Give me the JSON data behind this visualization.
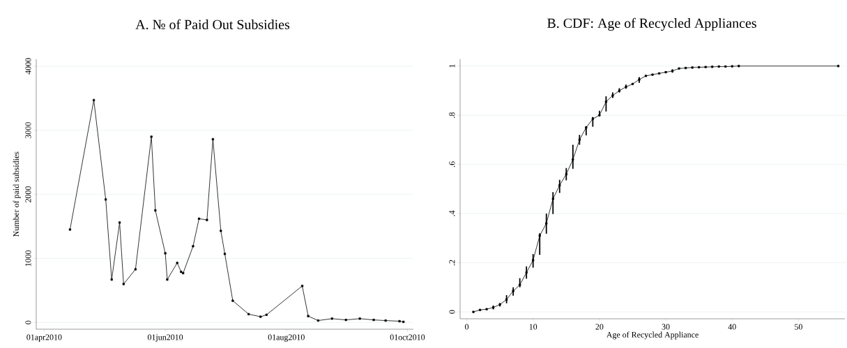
{
  "chart_data": [
    {
      "type": "line",
      "title": "A. № of Paid Out Subsidies",
      "ylabel": "Number of paid subsidies",
      "x": [
        "2010-04-14",
        "2010-04-26",
        "2010-05-02",
        "2010-05-05",
        "2010-05-09",
        "2010-05-11",
        "2010-05-17",
        "2010-05-25",
        "2010-05-27",
        "2010-06-01",
        "2010-06-02",
        "2010-06-07",
        "2010-06-09",
        "2010-06-10",
        "2010-06-15",
        "2010-06-18",
        "2010-06-22",
        "2010-06-25",
        "2010-06-29",
        "2010-07-01",
        "2010-07-05",
        "2010-07-13",
        "2010-07-19",
        "2010-07-22",
        "2010-08-09",
        "2010-08-12",
        "2010-08-17",
        "2010-08-24",
        "2010-08-31",
        "2010-09-07",
        "2010-09-14",
        "2010-09-20",
        "2010-09-27",
        "2010-09-29"
      ],
      "values": [
        1450,
        3470,
        1920,
        670,
        1560,
        600,
        830,
        2900,
        1750,
        1080,
        670,
        930,
        790,
        770,
        1190,
        1620,
        1600,
        2860,
        1430,
        1070,
        340,
        130,
        90,
        120,
        570,
        100,
        30,
        60,
        40,
        60,
        40,
        30,
        20,
        10
      ],
      "color": "#000000",
      "marker": "square",
      "line_style": "solid",
      "grid": "y",
      "xlim": [
        "2010-03-28",
        "2010-10-04"
      ],
      "xticks": [
        {
          "value": "2010-04-01",
          "label": "01apr2010"
        },
        {
          "value": "2010-06-01",
          "label": "01jun2010"
        },
        {
          "value": "2010-08-01",
          "label": "01aug2010"
        },
        {
          "value": "2010-10-01",
          "label": "01oct2010"
        }
      ],
      "ylim": [
        -105,
        4110
      ],
      "yticks": [
        0,
        1000,
        2000,
        3000,
        4000
      ]
    },
    {
      "type": "line",
      "title": "B. CDF: Age of Recycled Appliances",
      "xlabel": "Age of Recycled Appliance",
      "x": [
        1,
        2,
        3,
        4,
        5,
        6,
        7,
        8,
        9,
        10,
        11,
        12,
        13,
        14,
        15,
        16,
        17,
        18,
        19,
        20,
        21,
        22,
        23,
        24,
        25,
        26,
        27,
        28,
        29,
        30,
        31,
        32,
        33,
        34,
        35,
        36,
        37,
        38,
        39,
        40,
        41,
        56
      ],
      "values": [
        0.0,
        0.008,
        0.011,
        0.018,
        0.03,
        0.05,
        0.085,
        0.11,
        0.16,
        0.21,
        0.31,
        0.36,
        0.46,
        0.515,
        0.56,
        0.62,
        0.7,
        0.75,
        0.785,
        0.8,
        0.855,
        0.88,
        0.9,
        0.915,
        0.927,
        0.945,
        0.96,
        0.965,
        0.97,
        0.975,
        0.98,
        0.99,
        0.992,
        0.994,
        0.995,
        0.996,
        0.997,
        0.998,
        0.998,
        0.999,
        1.0,
        1.0
      ],
      "errors": [
        null,
        null,
        null,
        [
          0.01,
          0.026
        ],
        [
          0.022,
          0.036
        ],
        [
          0.035,
          0.068
        ],
        [
          0.066,
          0.1
        ],
        [
          0.1,
          0.137
        ],
        [
          0.135,
          0.185
        ],
        [
          0.18,
          0.235
        ],
        [
          0.232,
          0.32
        ],
        [
          0.318,
          0.4
        ],
        [
          0.398,
          0.487
        ],
        [
          0.484,
          0.537
        ],
        [
          0.535,
          0.585
        ],
        [
          0.582,
          0.68
        ],
        [
          0.68,
          0.72
        ],
        [
          0.718,
          0.755
        ],
        [
          0.753,
          0.793
        ],
        [
          0.795,
          0.818
        ],
        [
          0.815,
          0.877
        ],
        [
          0.87,
          0.893
        ],
        [
          0.892,
          0.91
        ],
        [
          0.908,
          0.925
        ],
        null,
        [
          0.932,
          0.955
        ],
        null,
        null,
        null,
        null,
        [
          0.973,
          0.987
        ],
        null,
        null,
        null,
        null,
        null,
        null,
        null,
        null,
        null,
        null,
        null
      ],
      "color": "#000000",
      "marker": "square",
      "line_style": "solid",
      "grid": "y",
      "xlim": [
        -1,
        57
      ],
      "xticks": [
        0,
        10,
        20,
        30,
        40,
        50
      ],
      "ylim": [
        -0.028,
        1.028
      ],
      "yticks": [
        {
          "value": 0,
          "label": "0"
        },
        {
          "value": 0.2,
          "label": ".2"
        },
        {
          "value": 0.4,
          "label": ".4"
        },
        {
          "value": 0.6,
          "label": ".6"
        },
        {
          "value": 0.8,
          "label": ".8"
        },
        {
          "value": 1,
          "label": "1"
        }
      ]
    }
  ]
}
